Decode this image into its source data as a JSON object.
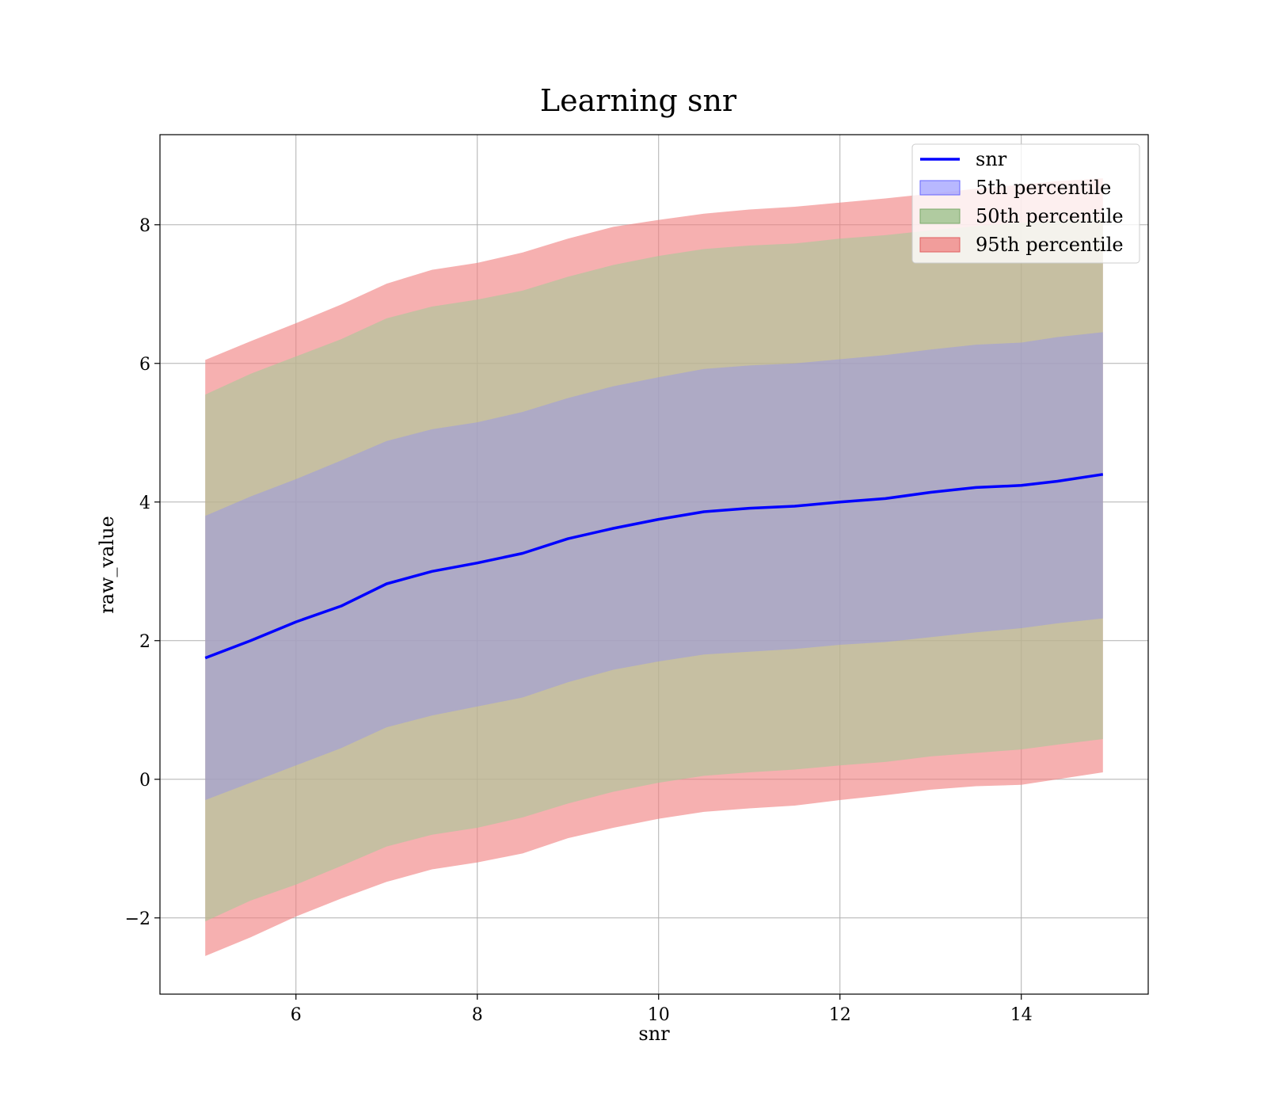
{
  "chart_data": {
    "type": "area",
    "title": "Learning snr",
    "xlabel": "snr",
    "ylabel": "raw_value",
    "xlim": [
      4.5,
      15.4
    ],
    "ylim": [
      -3.1,
      9.3
    ],
    "xticks": [
      6,
      8,
      10,
      12,
      14
    ],
    "yticks": [
      -2,
      0,
      2,
      4,
      6,
      8
    ],
    "ytick_labels": [
      "−2",
      "0",
      "2",
      "4",
      "6",
      "8"
    ],
    "grid": true,
    "legend_position": "top-right",
    "x": [
      5.0,
      5.5,
      6.0,
      6.5,
      7.0,
      7.5,
      8.0,
      8.5,
      9.0,
      9.5,
      10.0,
      10.5,
      11.0,
      11.5,
      12.0,
      12.5,
      13.0,
      13.5,
      14.0,
      14.4,
      14.9
    ],
    "line": {
      "name": "snr",
      "color": "#0000ff",
      "values": [
        1.75,
        2.0,
        2.27,
        2.5,
        2.82,
        3.0,
        3.12,
        3.26,
        3.47,
        3.62,
        3.75,
        3.86,
        3.91,
        3.94,
        4.0,
        4.05,
        4.14,
        4.21,
        4.24,
        4.3,
        4.4
      ]
    },
    "bands": [
      {
        "name": "95th percentile",
        "color": "#f08080",
        "upper": [
          6.05,
          6.32,
          6.58,
          6.85,
          7.15,
          7.35,
          7.45,
          7.6,
          7.8,
          7.97,
          8.07,
          8.16,
          8.22,
          8.26,
          8.32,
          8.38,
          8.45,
          8.52,
          8.58,
          8.63,
          8.67
        ],
        "lower": [
          -2.55,
          -2.28,
          -1.98,
          -1.72,
          -1.48,
          -1.3,
          -1.2,
          -1.07,
          -0.85,
          -0.7,
          -0.57,
          -0.47,
          -0.42,
          -0.38,
          -0.3,
          -0.23,
          -0.15,
          -0.1,
          -0.08,
          0.0,
          0.1
        ]
      },
      {
        "name": "50th percentile",
        "color": "#a8c89a",
        "upper": [
          5.55,
          5.85,
          6.1,
          6.35,
          6.65,
          6.82,
          6.92,
          7.05,
          7.25,
          7.42,
          7.55,
          7.65,
          7.7,
          7.73,
          7.8,
          7.85,
          7.92,
          7.98,
          8.03,
          8.06,
          8.08
        ],
        "lower": [
          -2.05,
          -1.75,
          -1.52,
          -1.25,
          -0.97,
          -0.8,
          -0.7,
          -0.55,
          -0.35,
          -0.18,
          -0.05,
          0.05,
          0.1,
          0.14,
          0.2,
          0.25,
          0.33,
          0.38,
          0.43,
          0.5,
          0.58
        ]
      },
      {
        "name": "5th percentile",
        "color": "#8888ff",
        "upper": [
          3.8,
          4.08,
          4.33,
          4.6,
          4.88,
          5.05,
          5.15,
          5.3,
          5.5,
          5.67,
          5.8,
          5.92,
          5.97,
          6.0,
          6.06,
          6.12,
          6.2,
          6.27,
          6.3,
          6.38,
          6.45
        ],
        "lower": [
          -0.3,
          -0.05,
          0.2,
          0.45,
          0.75,
          0.92,
          1.05,
          1.18,
          1.4,
          1.58,
          1.7,
          1.8,
          1.84,
          1.88,
          1.94,
          1.98,
          2.05,
          2.12,
          2.18,
          2.25,
          2.32
        ]
      }
    ],
    "legend": [
      "snr",
      "5th percentile",
      "50th percentile",
      "95th percentile"
    ]
  }
}
